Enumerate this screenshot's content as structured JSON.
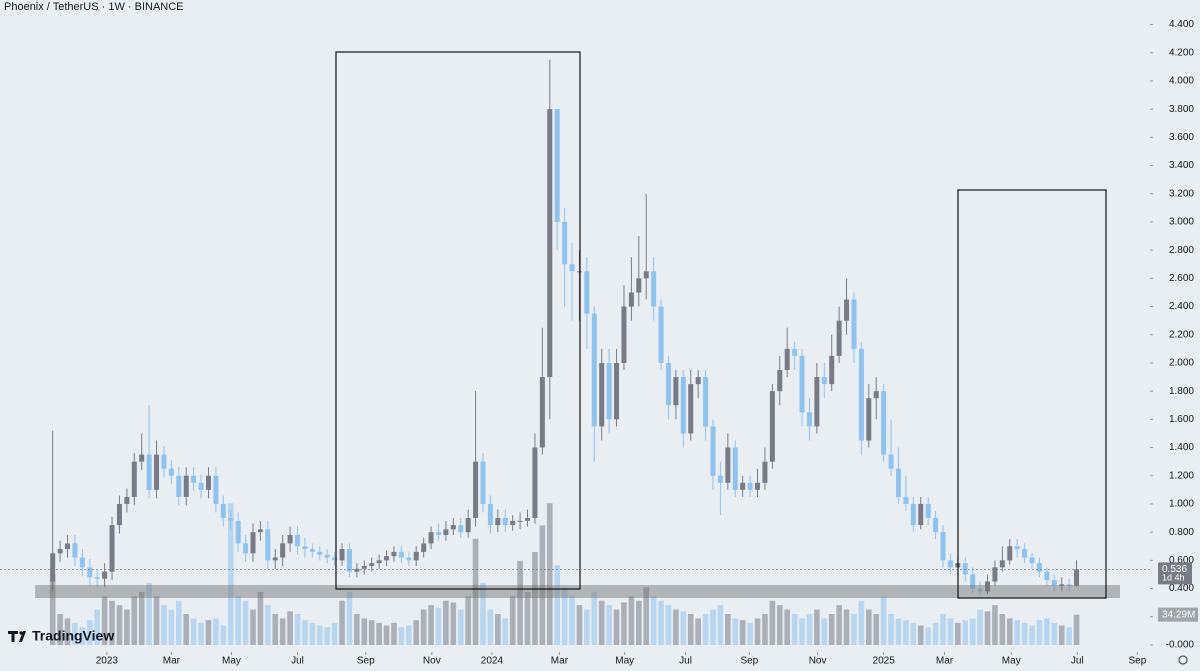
{
  "chart_data": {
    "type": "candlestick",
    "title": "Phoenix / TetherUS · 1W · BINANCE",
    "brand": "TradingView",
    "countdown": "1d 4h",
    "volume_last_label": "34.29M",
    "up_color": "#787b86",
    "down_color": "#90c2ee",
    "grid": false,
    "open": [
      0.45,
      0.65,
      0.68,
      0.72,
      0.62,
      0.55,
      0.48,
      0.47,
      0.52,
      0.85,
      1.0,
      1.05,
      1.3,
      1.35,
      1.1,
      1.35,
      1.25,
      1.2,
      1.05,
      1.2,
      1.15,
      1.1,
      1.2,
      1.0,
      0.9,
      0.88,
      0.72,
      0.65,
      0.8,
      0.82,
      0.6,
      0.62,
      0.72,
      0.78,
      0.7,
      0.68,
      0.66,
      0.64,
      0.62,
      0.6,
      0.68,
      0.52,
      0.54,
      0.56,
      0.58,
      0.6,
      0.63,
      0.66,
      0.62,
      0.6,
      0.66,
      0.72,
      0.8,
      0.78,
      0.82,
      0.85,
      0.8,
      0.9,
      1.3,
      1.0,
      0.85,
      0.9,
      0.85,
      0.88,
      0.88,
      0.9,
      1.4,
      1.9,
      3.8,
      3.0,
      2.7,
      2.65,
      2.65,
      2.35,
      1.55,
      2.0,
      1.6,
      2.0,
      2.4,
      2.5,
      2.6,
      2.65,
      2.4,
      2.0,
      1.7,
      1.9,
      1.5,
      1.85,
      1.9,
      1.55,
      1.2,
      1.15,
      1.4,
      1.1,
      1.15,
      1.1,
      1.15,
      1.3,
      1.8,
      1.95,
      2.1,
      2.05,
      1.65,
      1.55,
      1.9,
      1.85,
      2.05,
      2.3,
      2.45,
      2.1,
      1.45,
      1.75,
      1.8,
      1.35,
      1.25,
      1.05,
      1.0,
      0.85,
      1.0,
      0.9,
      0.8,
      0.6,
      0.55,
      0.58,
      0.5,
      0.4,
      0.38,
      0.45,
      0.55,
      0.6,
      0.7,
      0.68,
      0.62,
      0.58,
      0.52,
      0.46,
      0.42,
      0.43,
      0.42
    ],
    "high": [
      1.52,
      0.74,
      0.78,
      0.78,
      0.68,
      0.61,
      0.54,
      0.58,
      0.91,
      1.06,
      1.11,
      1.36,
      1.5,
      1.7,
      1.45,
      1.41,
      1.31,
      1.26,
      1.26,
      1.26,
      1.21,
      1.26,
      1.26,
      1.06,
      0.96,
      0.94,
      0.78,
      0.86,
      0.88,
      0.88,
      0.68,
      0.78,
      0.84,
      0.84,
      0.76,
      0.72,
      0.7,
      0.68,
      0.66,
      0.72,
      0.72,
      0.58,
      0.6,
      0.62,
      0.64,
      0.67,
      0.7,
      0.7,
      0.66,
      0.7,
      0.76,
      0.84,
      0.86,
      0.88,
      0.9,
      0.9,
      0.96,
      1.8,
      1.36,
      1.06,
      0.96,
      0.96,
      0.92,
      0.94,
      0.96,
      1.5,
      2.25,
      4.15,
      3.8,
      3.1,
      2.85,
      2.8,
      2.75,
      2.4,
      2.1,
      2.1,
      2.1,
      2.55,
      2.75,
      2.9,
      3.2,
      2.75,
      2.45,
      2.05,
      1.95,
      1.95,
      1.95,
      1.95,
      1.95,
      1.6,
      1.3,
      1.5,
      1.45,
      1.2,
      1.2,
      1.25,
      1.4,
      1.85,
      2.05,
      2.25,
      2.15,
      2.1,
      1.75,
      2.0,
      2.0,
      2.2,
      2.4,
      2.6,
      2.5,
      2.15,
      1.85,
      1.9,
      1.85,
      1.6,
      1.4,
      1.2,
      1.05,
      1.05,
      1.05,
      0.95,
      0.85,
      0.65,
      0.62,
      0.62,
      0.55,
      0.45,
      0.5,
      0.6,
      0.7,
      0.75,
      0.75,
      0.72,
      0.65,
      0.62,
      0.55,
      0.5,
      0.48,
      0.47,
      0.6
    ],
    "low": [
      0.38,
      0.59,
      0.62,
      0.56,
      0.49,
      0.42,
      0.41,
      0.41,
      0.46,
      0.79,
      0.94,
      0.99,
      1.24,
      1.04,
      1.04,
      1.19,
      1.14,
      0.99,
      0.99,
      1.09,
      1.04,
      1.04,
      0.94,
      0.84,
      0.82,
      0.66,
      0.59,
      0.59,
      0.74,
      0.54,
      0.54,
      0.56,
      0.66,
      0.64,
      0.62,
      0.62,
      0.6,
      0.58,
      0.56,
      0.56,
      0.48,
      0.48,
      0.5,
      0.52,
      0.54,
      0.56,
      0.59,
      0.58,
      0.56,
      0.56,
      0.62,
      0.68,
      0.74,
      0.74,
      0.78,
      0.76,
      0.76,
      0.84,
      0.94,
      0.79,
      0.8,
      0.8,
      0.81,
      0.82,
      0.84,
      0.86,
      1.35,
      1.6,
      2.8,
      2.4,
      2.3,
      2.3,
      2.1,
      1.3,
      1.45,
      1.5,
      1.55,
      1.95,
      2.3,
      2.4,
      2.45,
      2.3,
      1.95,
      1.6,
      1.6,
      1.4,
      1.45,
      1.75,
      1.45,
      1.1,
      0.92,
      1.1,
      1.05,
      1.05,
      1.05,
      1.05,
      1.1,
      1.25,
      1.7,
      1.9,
      1.95,
      1.55,
      1.45,
      1.5,
      1.75,
      1.8,
      2.0,
      2.2,
      2.0,
      1.35,
      1.4,
      1.6,
      1.3,
      1.2,
      1.0,
      0.95,
      0.8,
      0.82,
      0.85,
      0.75,
      0.55,
      0.5,
      0.5,
      0.45,
      0.37,
      0.35,
      0.36,
      0.42,
      0.52,
      0.57,
      0.62,
      0.58,
      0.54,
      0.48,
      0.42,
      0.38,
      0.38,
      0.38,
      0.41
    ],
    "close": [
      0.65,
      0.68,
      0.72,
      0.62,
      0.55,
      0.48,
      0.47,
      0.52,
      0.85,
      1.0,
      1.05,
      1.3,
      1.35,
      1.1,
      1.35,
      1.25,
      1.2,
      1.05,
      1.2,
      1.15,
      1.1,
      1.2,
      1.0,
      0.9,
      0.88,
      0.72,
      0.65,
      0.8,
      0.82,
      0.6,
      0.62,
      0.72,
      0.78,
      0.7,
      0.68,
      0.66,
      0.64,
      0.62,
      0.6,
      0.68,
      0.52,
      0.54,
      0.56,
      0.58,
      0.6,
      0.63,
      0.66,
      0.62,
      0.6,
      0.66,
      0.72,
      0.8,
      0.78,
      0.82,
      0.85,
      0.8,
      0.9,
      1.3,
      1.0,
      0.85,
      0.9,
      0.85,
      0.88,
      0.88,
      0.9,
      1.4,
      1.9,
      3.8,
      3.0,
      2.7,
      2.65,
      2.65,
      2.35,
      1.55,
      2.0,
      1.6,
      2.0,
      2.4,
      2.5,
      2.6,
      2.65,
      2.4,
      2.0,
      1.7,
      1.9,
      1.5,
      1.85,
      1.9,
      1.55,
      1.2,
      1.15,
      1.4,
      1.1,
      1.15,
      1.1,
      1.15,
      1.3,
      1.8,
      1.95,
      2.1,
      2.05,
      1.65,
      1.55,
      1.9,
      1.85,
      2.05,
      2.3,
      2.45,
      2.1,
      1.45,
      1.75,
      1.8,
      1.35,
      1.25,
      1.05,
      1.0,
      0.85,
      1.0,
      0.9,
      0.8,
      0.6,
      0.55,
      0.58,
      0.5,
      0.4,
      0.38,
      0.45,
      0.55,
      0.6,
      0.7,
      0.68,
      0.62,
      0.58,
      0.52,
      0.46,
      0.42,
      0.43,
      0.42,
      0.536
    ],
    "volume": [
      80,
      35,
      30,
      25,
      20,
      28,
      40,
      55,
      50,
      45,
      40,
      55,
      60,
      70,
      55,
      45,
      40,
      50,
      35,
      30,
      25,
      28,
      30,
      22,
      160,
      55,
      50,
      40,
      60,
      45,
      35,
      30,
      38,
      35,
      28,
      25,
      22,
      20,
      25,
      50,
      60,
      35,
      30,
      28,
      25,
      22,
      25,
      20,
      22,
      28,
      40,
      45,
      42,
      50,
      48,
      40,
      55,
      120,
      70,
      40,
      35,
      30,
      55,
      95,
      60,
      105,
      135,
      160,
      90,
      65,
      55,
      45,
      40,
      60,
      50,
      45,
      40,
      48,
      55,
      50,
      65,
      55,
      50,
      45,
      40,
      38,
      35,
      30,
      35,
      40,
      45,
      35,
      30,
      28,
      25,
      30,
      35,
      50,
      45,
      40,
      35,
      30,
      35,
      40,
      30,
      35,
      45,
      40,
      35,
      50,
      40,
      35,
      55,
      35,
      30,
      28,
      25,
      22,
      20,
      25,
      35,
      30,
      25,
      28,
      30,
      40,
      38,
      45,
      35,
      30,
      28,
      25,
      22,
      28,
      30,
      25,
      22,
      20,
      34.29
    ],
    "volume_ylim": [
      0,
      700
    ],
    "ylim": [
      -0.05,
      4.574
    ],
    "yticks": [
      {
        "value": 4.4,
        "label": "4.400"
      },
      {
        "value": 4.2,
        "label": "4.200"
      },
      {
        "value": 4.0,
        "label": "4.000"
      },
      {
        "value": 3.8,
        "label": "3.800"
      },
      {
        "value": 3.6,
        "label": "3.600"
      },
      {
        "value": 3.4,
        "label": "3.400"
      },
      {
        "value": 3.2,
        "label": "3.200"
      },
      {
        "value": 3.0,
        "label": "3.000"
      },
      {
        "value": 2.8,
        "label": "2.800"
      },
      {
        "value": 2.6,
        "label": "2.600"
      },
      {
        "value": 2.4,
        "label": "2.400"
      },
      {
        "value": 2.2,
        "label": "2.200"
      },
      {
        "value": 2.0,
        "label": "2.000"
      },
      {
        "value": 1.8,
        "label": "1.800"
      },
      {
        "value": 1.6,
        "label": "1.600"
      },
      {
        "value": 1.4,
        "label": "1.400"
      },
      {
        "value": 1.2,
        "label": "1.200"
      },
      {
        "value": 1.0,
        "label": "1.000"
      },
      {
        "value": 0.8,
        "label": "0.800"
      },
      {
        "value": 0.6,
        "label": "0.600"
      },
      {
        "value": 0.4,
        "label": "0.400"
      },
      {
        "value": 0.2,
        "label": "0.200"
      },
      {
        "value": 0,
        "label": "-0.000"
      }
    ],
    "xlim": [
      -7.1,
      147.9
    ],
    "xticks": [
      {
        "value": 7.3,
        "label": "2023"
      },
      {
        "value": 16.0,
        "label": "Mar"
      },
      {
        "value": 24.1,
        "label": "May"
      },
      {
        "value": 33.0,
        "label": "Jul"
      },
      {
        "value": 42.2,
        "label": "Sep"
      },
      {
        "value": 51.1,
        "label": "Nov"
      },
      {
        "value": 59.2,
        "label": "2024"
      },
      {
        "value": 68.3,
        "label": "Mar"
      },
      {
        "value": 77.1,
        "label": "May"
      },
      {
        "value": 85.3,
        "label": "Jul"
      },
      {
        "value": 93.9,
        "label": "Sep"
      },
      {
        "value": 103.1,
        "label": "Nov"
      },
      {
        "value": 112.0,
        "label": "2025"
      },
      {
        "value": 120.2,
        "label": "Mar"
      },
      {
        "value": 129.2,
        "label": "May"
      },
      {
        "value": 138.1,
        "label": "Jul"
      },
      {
        "value": 146.2,
        "label": "Sep"
      }
    ]
  }
}
